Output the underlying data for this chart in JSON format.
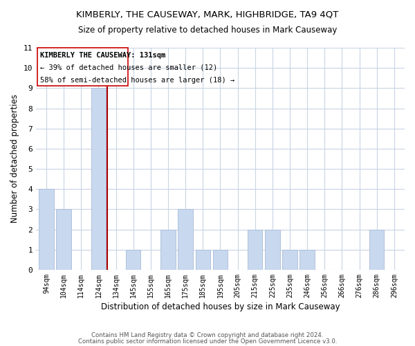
{
  "title": "KIMBERLY, THE CAUSEWAY, MARK, HIGHBRIDGE, TA9 4QT",
  "subtitle": "Size of property relative to detached houses in Mark Causeway",
  "xlabel": "Distribution of detached houses by size in Mark Causeway",
  "ylabel": "Number of detached properties",
  "categories": [
    "94sqm",
    "104sqm",
    "114sqm",
    "124sqm",
    "134sqm",
    "145sqm",
    "155sqm",
    "165sqm",
    "175sqm",
    "185sqm",
    "195sqm",
    "205sqm",
    "215sqm",
    "225sqm",
    "235sqm",
    "246sqm",
    "256sqm",
    "266sqm",
    "276sqm",
    "286sqm",
    "296sqm"
  ],
  "values": [
    4,
    3,
    0,
    9,
    0,
    1,
    0,
    2,
    3,
    1,
    1,
    0,
    2,
    2,
    1,
    1,
    0,
    0,
    0,
    2,
    0
  ],
  "bar_color": "#c8d8ee",
  "bar_edge_color": "#a8bcd8",
  "subject_line_color": "#aa0000",
  "annotation_box_color": "#cc0000",
  "subject_label": "KIMBERLY THE CAUSEWAY: 131sqm",
  "annotation_line1": "← 39% of detached houses are smaller (12)",
  "annotation_line2": "58% of semi-detached houses are larger (18) →",
  "ylim": [
    0,
    11
  ],
  "yticks": [
    0,
    1,
    2,
    3,
    4,
    5,
    6,
    7,
    8,
    9,
    10,
    11
  ],
  "grid_color": "#c8d4e4",
  "background_color": "#ffffff",
  "footer_line1": "Contains HM Land Registry data © Crown copyright and database right 2024.",
  "footer_line2": "Contains public sector information licensed under the Open Government Licence v3.0."
}
